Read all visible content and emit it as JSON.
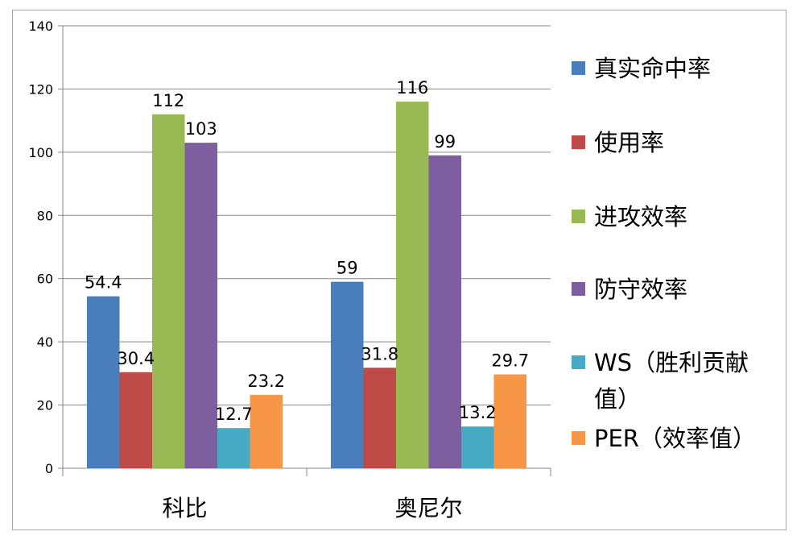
{
  "chart_data": {
    "type": "bar",
    "categories": [
      "科比",
      "奥尼尔"
    ],
    "series": [
      {
        "name": "真实命中率",
        "values": [
          54.4,
          59
        ],
        "color": "#4a7ebb"
      },
      {
        "name": "使用率",
        "values": [
          30.4,
          31.8
        ],
        "color": "#be4b48"
      },
      {
        "name": "进攻效率",
        "values": [
          112,
          116
        ],
        "color": "#98b954"
      },
      {
        "name": "防守效率",
        "values": [
          103,
          99
        ],
        "color": "#7d5fa0"
      },
      {
        "name": "WS（胜利贡献值）",
        "values": [
          12.7,
          13.2
        ],
        "color": "#46aac5"
      },
      {
        "name": "PER（效率值）",
        "values": [
          23.2,
          29.7
        ],
        "color": "#f79646"
      }
    ],
    "data_labels": [
      [
        "54.4",
        "59"
      ],
      [
        "30.4",
        "31.8"
      ],
      [
        "112",
        "116"
      ],
      [
        "103",
        "99"
      ],
      [
        "12.7",
        "13.2"
      ],
      [
        "23.2",
        "29.7"
      ]
    ],
    "legend_lines": [
      [
        "真实命中率"
      ],
      [
        "使用率"
      ],
      [
        "进攻效率"
      ],
      [
        "防守效率"
      ],
      [
        "WS（胜利贡献",
        "值）"
      ],
      [
        "PER（效率值）"
      ]
    ],
    "y_ticks": [
      "0",
      "20",
      "40",
      "60",
      "80",
      "100",
      "120",
      "140"
    ],
    "ylim": [
      0,
      140
    ],
    "grid": true,
    "legend_position": "right",
    "title": "",
    "xlabel": "",
    "ylabel": ""
  }
}
